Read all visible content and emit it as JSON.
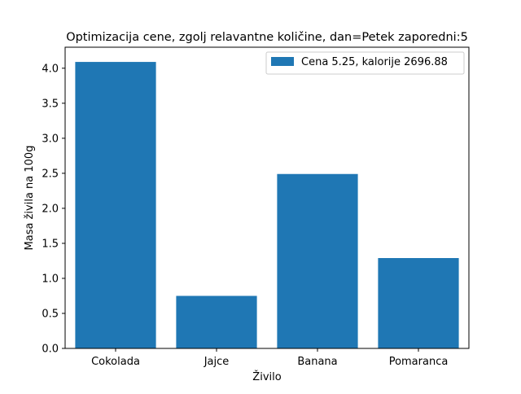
{
  "chart_data": {
    "type": "bar",
    "title": "Optimizacija cene, zgolj relavantne količine, dan=Petek  zaporedni:5",
    "xlabel": "Živilo",
    "ylabel": "Masa živila na 100g",
    "categories": [
      "Cokolada",
      "Jajce",
      "Banana",
      "Pomaranca"
    ],
    "series": [
      {
        "name": "Cena 5.25, kalorije 2696.88",
        "values": [
          4.09,
          0.75,
          2.49,
          1.29
        ],
        "color": "#1f77b4"
      }
    ],
    "ylim": [
      0,
      4.3
    ],
    "yticks": [
      "0.0",
      "0.5",
      "1.0",
      "1.5",
      "2.0",
      "2.5",
      "3.0",
      "3.5",
      "4.0"
    ],
    "grid": false,
    "legend_position": "top-right"
  }
}
